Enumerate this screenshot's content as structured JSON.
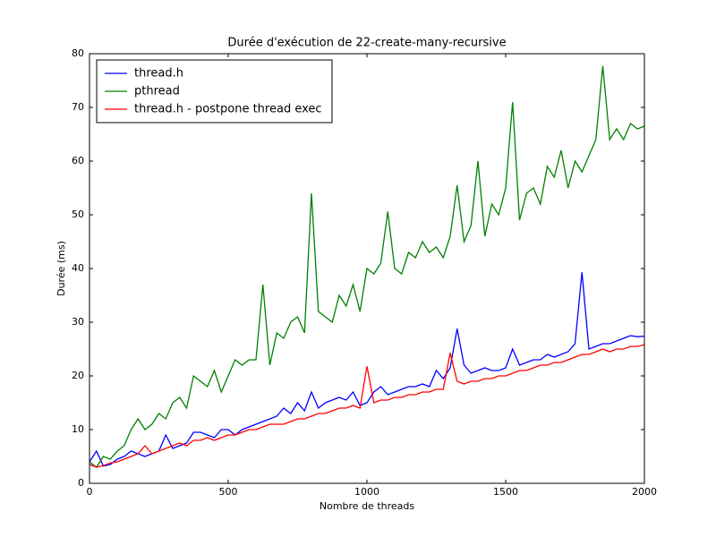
{
  "chart_data": {
    "type": "line",
    "title": "Durée d'exécution de 22-create-many-recursive",
    "xlabel": "Nombre de threads",
    "ylabel": "Durée (ms)",
    "x": [
      0,
      25,
      50,
      75,
      100,
      125,
      150,
      175,
      200,
      225,
      250,
      275,
      300,
      325,
      350,
      375,
      400,
      425,
      450,
      475,
      500,
      525,
      550,
      575,
      600,
      625,
      650,
      675,
      700,
      725,
      750,
      775,
      800,
      825,
      850,
      875,
      900,
      925,
      950,
      975,
      1000,
      1025,
      1050,
      1075,
      1100,
      1125,
      1150,
      1175,
      1200,
      1225,
      1250,
      1275,
      1300,
      1325,
      1350,
      1375,
      1400,
      1425,
      1450,
      1475,
      1500,
      1525,
      1550,
      1575,
      1600,
      1625,
      1650,
      1675,
      1700,
      1725,
      1750,
      1775,
      1800,
      1825,
      1850,
      1875,
      1900,
      1925,
      1950,
      1975,
      2000
    ],
    "series": [
      {
        "name": "thread.h",
        "color": "#0000ff",
        "values": [
          4,
          6,
          3.2,
          3.5,
          4.5,
          5,
          6,
          5.5,
          5,
          5.5,
          6,
          9,
          6.5,
          7,
          7.5,
          9.5,
          9.5,
          9,
          8.5,
          10,
          10,
          9,
          10,
          10.5,
          11,
          11.5,
          12,
          12.5,
          14,
          13,
          15,
          13.5,
          17,
          14,
          15,
          15.5,
          16,
          15.5,
          17,
          14.5,
          15,
          17,
          18,
          16.5,
          17,
          17.5,
          18,
          18,
          18.5,
          18,
          21,
          19.5,
          21.5,
          28.8,
          22,
          20.5,
          21,
          21.5,
          21,
          21,
          21.5,
          25,
          22,
          22.5,
          23,
          23,
          24,
          23.5,
          24,
          24.5,
          26,
          39.3,
          25,
          25.5,
          26,
          26,
          26.5,
          27,
          27.5,
          27.3,
          27.4
        ]
      },
      {
        "name": "pthread",
        "color": "#008000",
        "values": [
          4,
          3,
          5,
          4.5,
          6,
          7,
          10,
          12,
          10,
          11,
          13,
          12,
          15,
          16,
          14,
          20,
          19,
          18,
          21,
          17,
          20,
          23,
          22,
          23,
          23,
          37,
          22,
          28,
          27,
          30,
          31,
          28,
          54,
          32,
          31,
          30,
          35,
          33,
          37,
          32,
          40,
          39,
          41,
          50.6,
          40,
          39,
          43,
          42,
          45,
          43,
          44,
          42,
          46,
          55.5,
          45,
          48,
          60,
          46,
          52,
          50,
          55,
          71,
          49,
          54,
          55,
          52,
          59,
          57,
          62,
          55,
          60,
          58,
          61,
          64,
          77.7,
          64,
          66,
          64,
          67,
          66,
          66.5
        ]
      },
      {
        "name": "thread.h - postpone thread exec",
        "color": "#ff0000",
        "values": [
          3.5,
          3,
          3.3,
          3.8,
          4,
          4.5,
          5,
          5.5,
          7,
          5.5,
          6,
          6.5,
          7,
          7.5,
          7,
          8,
          8,
          8.5,
          8,
          8.5,
          9,
          9,
          9.5,
          10,
          10,
          10.5,
          11,
          11,
          11,
          11.5,
          12,
          12,
          12.5,
          13,
          13,
          13.5,
          14,
          14,
          14.5,
          14,
          21.8,
          15,
          15.5,
          15.5,
          16,
          16,
          16.5,
          16.5,
          17,
          17,
          17.5,
          17.5,
          24.3,
          19,
          18.5,
          19,
          19,
          19.5,
          19.5,
          20,
          20,
          20.5,
          21,
          21,
          21.5,
          22,
          22,
          22.5,
          22.5,
          23,
          23.5,
          24,
          24,
          24.5,
          25,
          24.5,
          25,
          25,
          25.5,
          25.5,
          25.8
        ]
      }
    ],
    "xlim": [
      0,
      2000
    ],
    "xticks": [
      0,
      500,
      1000,
      1500,
      2000
    ],
    "ylim": [
      0,
      80
    ],
    "yticks": [
      0,
      10,
      20,
      30,
      40,
      50,
      60,
      70,
      80
    ],
    "legend": "upper left"
  }
}
